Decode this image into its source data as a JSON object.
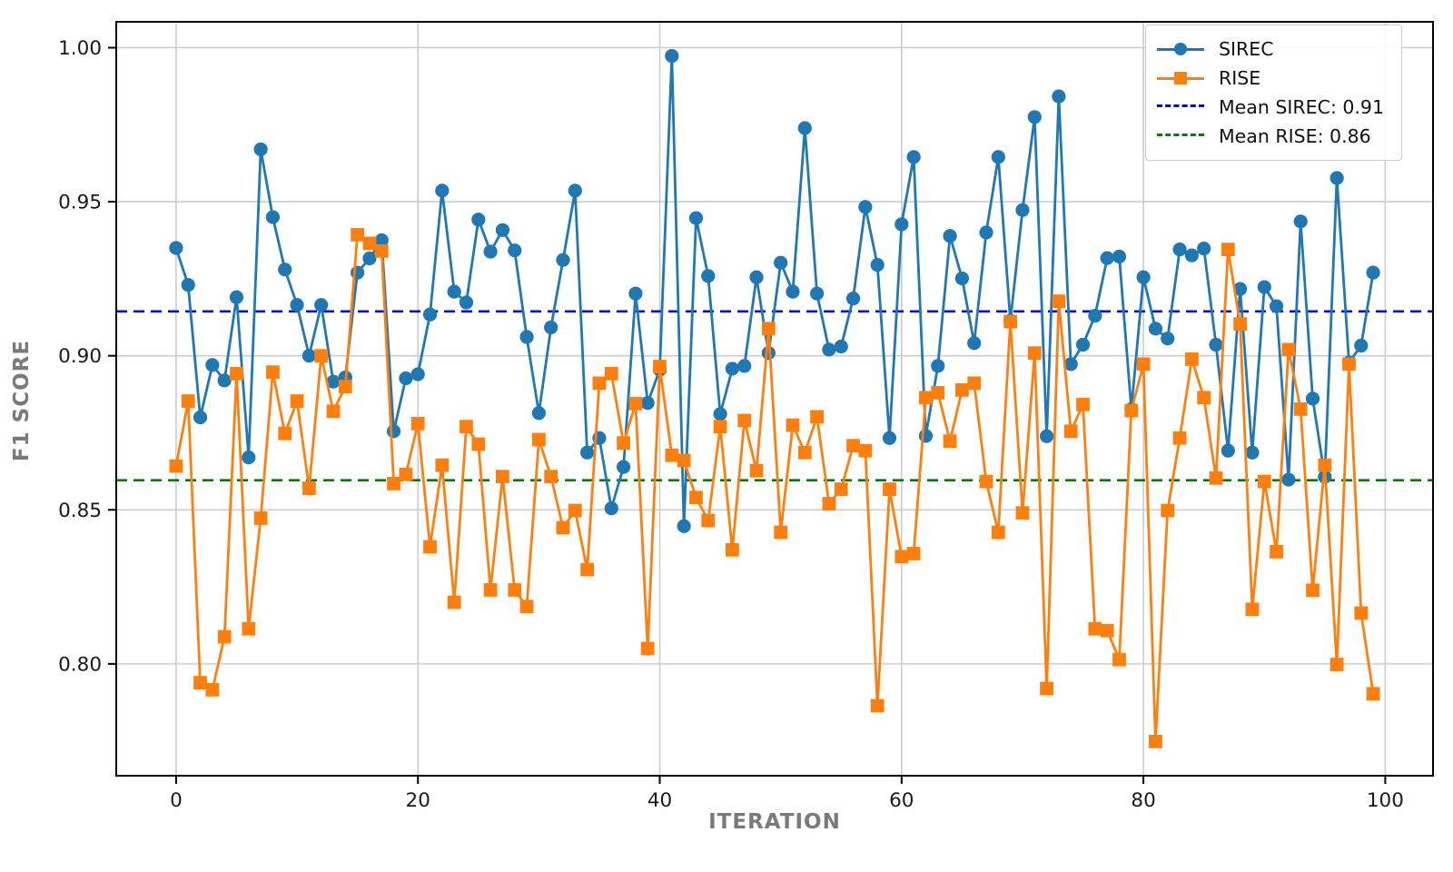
{
  "chart_data": {
    "type": "line",
    "xlabel": "ITERATION",
    "ylabel": "F1 SCORE",
    "x_start": 0,
    "xlim": [
      -4.95,
      103.95
    ],
    "ylim": [
      0.7637,
      1.0084
    ],
    "grid": true,
    "legend_position": "top-right",
    "xticks": [
      {
        "v": 0,
        "label": "0"
      },
      {
        "v": 20,
        "label": "20"
      },
      {
        "v": 40,
        "label": "40"
      },
      {
        "v": 60,
        "label": "60"
      },
      {
        "v": 80,
        "label": "80"
      },
      {
        "v": 100,
        "label": "100"
      }
    ],
    "yticks": [
      {
        "v": 0.8,
        "label": "0.80"
      },
      {
        "v": 0.85,
        "label": "0.85"
      },
      {
        "v": 0.9,
        "label": "0.90"
      },
      {
        "v": 0.95,
        "label": "0.95"
      },
      {
        "v": 1.0,
        "label": "1.00"
      }
    ],
    "series": [
      {
        "name": "SIREC",
        "color": "#1f77b4",
        "marker": "circle",
        "values": [
          0.935,
          0.923,
          0.88,
          0.897,
          0.892,
          0.919,
          0.867,
          0.967,
          0.945,
          0.928,
          0.9165,
          0.9,
          0.9165,
          0.8916,
          0.893,
          0.927,
          0.9316,
          0.9375,
          0.8755,
          0.8927,
          0.894,
          0.9134,
          0.9536,
          0.9208,
          0.9173,
          0.9442,
          0.9338,
          0.9408,
          0.9342,
          0.9061,
          0.8814,
          0.9092,
          0.9311,
          0.9536,
          0.8686,
          0.8733,
          0.8505,
          0.8639,
          0.9202,
          0.8847,
          0.8955,
          0.9973,
          0.8447,
          0.9447,
          0.9259,
          0.8811,
          0.8958,
          0.8967,
          0.9255,
          0.9009,
          0.9302,
          0.9208,
          0.9739,
          0.9202,
          0.902,
          0.903,
          0.9186,
          0.9483,
          0.9295,
          0.8733,
          0.9427,
          0.9645,
          0.874,
          0.8967,
          0.9389,
          0.9251,
          0.9041,
          0.94,
          0.9645,
          0.9114,
          0.9473,
          0.9775,
          0.8739,
          0.9842,
          0.8973,
          0.9036,
          0.913,
          0.9317,
          0.9322,
          0.8827,
          0.9255,
          0.9088,
          0.9056,
          0.9345,
          0.9326,
          0.9348,
          0.9036,
          0.8692,
          0.9217,
          0.8686,
          0.9223,
          0.9161,
          0.8598,
          0.9436,
          0.8861,
          0.8607,
          0.9577,
          0.8978,
          0.9033,
          0.927
        ]
      },
      {
        "name": "RISE",
        "color": "#ff7f0e",
        "marker": "square",
        "values": [
          0.8642,
          0.8853,
          0.7939,
          0.7916,
          0.8088,
          0.8942,
          0.8114,
          0.8473,
          0.8947,
          0.8748,
          0.8853,
          0.857,
          0.9,
          0.882,
          0.89,
          0.9393,
          0.9365,
          0.934,
          0.8585,
          0.8615,
          0.878,
          0.838,
          0.8645,
          0.82,
          0.877,
          0.8713,
          0.824,
          0.8608,
          0.824,
          0.8186,
          0.8728,
          0.8608,
          0.8442,
          0.8498,
          0.8306,
          0.8911,
          0.8942,
          0.8717,
          0.8845,
          0.805,
          0.8965,
          0.8677,
          0.866,
          0.854,
          0.8465,
          0.877,
          0.837,
          0.879,
          0.8627,
          0.9088,
          0.8427,
          0.8775,
          0.8686,
          0.8802,
          0.852,
          0.8567,
          0.8708,
          0.8692,
          0.7864,
          0.8567,
          0.8348,
          0.8358,
          0.8864,
          0.888,
          0.8723,
          0.8889,
          0.8911,
          0.8592,
          0.8427,
          0.9111,
          0.849,
          0.9009,
          0.792,
          0.9177,
          0.8755,
          0.8842,
          0.8114,
          0.8108,
          0.8014,
          0.8822,
          0.8973,
          0.7748,
          0.8498,
          0.8733,
          0.8989,
          0.8864,
          0.8603,
          0.9345,
          0.9103,
          0.8177,
          0.8592,
          0.8364,
          0.902,
          0.8827,
          0.8239,
          0.8645,
          0.7998,
          0.8973,
          0.8165,
          0.7903
        ]
      }
    ],
    "mean_lines": [
      {
        "label": "Mean SIREC: 0.91",
        "value": 0.9144,
        "color": "#0000ee",
        "dash": [
          12,
          7
        ]
      },
      {
        "label": "Mean RISE: 0.86",
        "value": 0.8596,
        "color": "#007d00",
        "dash": [
          12,
          7
        ]
      }
    ],
    "colors": {
      "grid": "#cccccc",
      "frame": "#000000",
      "tick_label": "#1a1a1a",
      "axis_title": "#7a7a7a"
    }
  }
}
